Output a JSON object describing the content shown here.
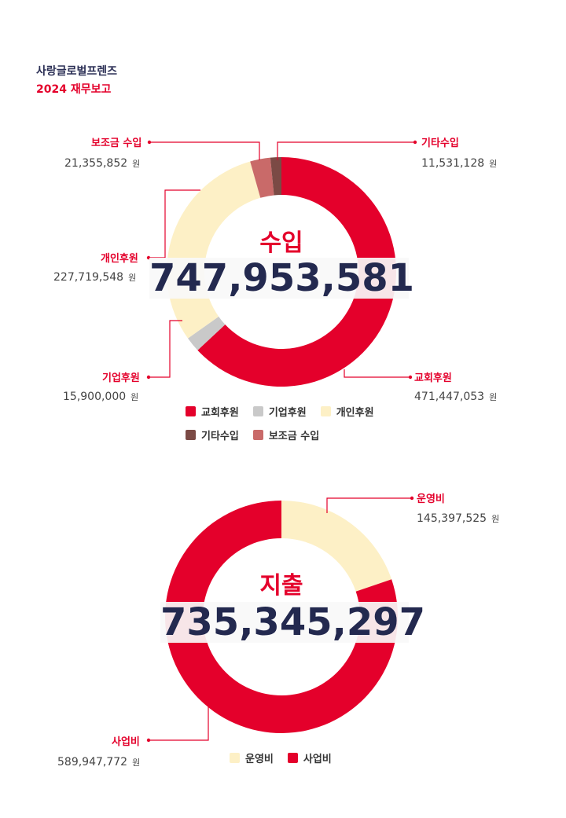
{
  "header": {
    "org": "사랑글로벌프렌즈",
    "year_title": "2024 재무보고"
  },
  "unit": "원",
  "income": {
    "title": "수입",
    "total": "747,953,581",
    "labels": {
      "church": "교회후원",
      "corporate": "기업후원",
      "individual": "개인후원",
      "other": "기타수입",
      "subsidy": "보조금 수입"
    },
    "values_text": {
      "church": "471,447,053",
      "corporate": "15,900,000",
      "individual": "227,719,548",
      "other": "11,531,128",
      "subsidy": "21,355,852"
    }
  },
  "expense": {
    "title": "지출",
    "total": "735,345,297",
    "labels": {
      "operation": "운영비",
      "business": "사업비"
    },
    "values_text": {
      "operation": "145,397,525",
      "business": "589,947,772"
    }
  },
  "colors": {
    "church": "#e4002b",
    "corporate": "#c9c9c9",
    "individual": "#fdf0c6",
    "other": "#7b4a45",
    "subsidy": "#c96a69",
    "leader": "#e4002b"
  },
  "chart_data": [
    {
      "type": "pie",
      "title": "수입",
      "categories": [
        "교회후원",
        "기업후원",
        "개인후원",
        "보조금 수입",
        "기타수입"
      ],
      "values": [
        471447053,
        15900000,
        227719548,
        21355852,
        11531128
      ],
      "colors": [
        "#e4002b",
        "#c9c9c9",
        "#fdf0c6",
        "#c96a69",
        "#7b4a45"
      ],
      "legend": "bottom"
    },
    {
      "type": "pie",
      "title": "지출",
      "categories": [
        "운영비",
        "사업비"
      ],
      "values": [
        145397525,
        589947772
      ],
      "colors": [
        "#fdf0c6",
        "#e4002b"
      ],
      "legend": "bottom"
    }
  ]
}
